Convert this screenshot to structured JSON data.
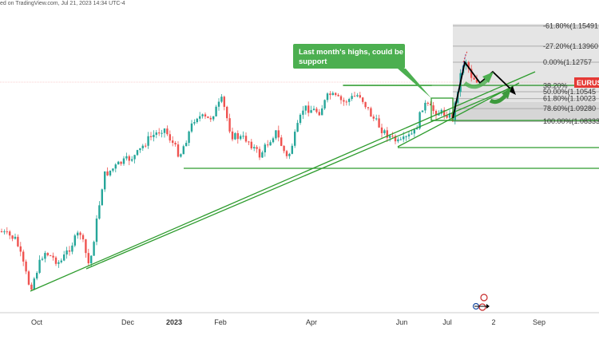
{
  "header": {
    "text": "ed on TradingView.com, Jul 21, 2023 14:34 UTC-4"
  },
  "chart_data": {
    "type": "candlestick",
    "symbol_badge": "EURUS",
    "x_ticks": [
      {
        "label": "Oct",
        "bold": false
      },
      {
        "label": "Dec",
        "bold": false
      },
      {
        "label": "2023",
        "bold": true
      },
      {
        "label": "Feb",
        "bold": false
      },
      {
        "label": "Apr",
        "bold": false
      },
      {
        "label": "Jun",
        "bold": false
      },
      {
        "label": "Jul",
        "bold": false
      },
      {
        "label": "2",
        "bold": false
      },
      {
        "label": "Sep",
        "bold": false
      }
    ],
    "fib_levels": [
      {
        "label": "-61.80%(1.15491",
        "price": 1.15491
      },
      {
        "label": "-27.20%(1.13960",
        "price": 1.1396
      },
      {
        "label": "0.00%(1.12757",
        "price": 1.12757
      },
      {
        "label": "38.20%",
        "price": 1.11
      },
      {
        "label": "50.00%(1.10545",
        "price": 1.10545
      },
      {
        "label": "61.80%(1.10023",
        "price": 1.10023
      },
      {
        "label": "78.60%(1.09280",
        "price": 1.0928
      },
      {
        "label": "100.00%(1.08333",
        "price": 1.08333
      }
    ],
    "annotation": "Last month's highs, could be support",
    "colors": {
      "up": "#26a69a",
      "down": "#ef5350",
      "lines": "#2e9c2e",
      "callout": "#4caf50",
      "badge": "#e53935",
      "fib_zone": "#d9d9d9"
    }
  }
}
